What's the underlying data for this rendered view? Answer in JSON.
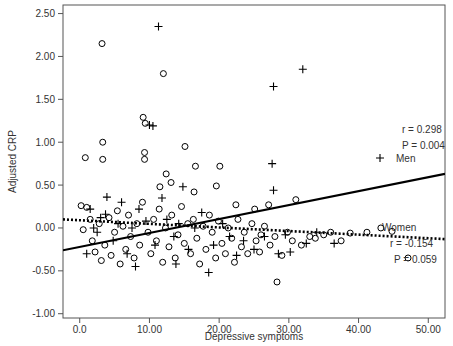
{
  "chart_data": {
    "type": "scatter",
    "x_label": "Depressive symptoms",
    "y_label": "Adjusted CRP",
    "xlim": [
      -2.4,
      52.4
    ],
    "ylim": [
      -1.05,
      2.6
    ],
    "xticks": [
      {
        "value": 0,
        "label": "0.0"
      },
      {
        "value": 10,
        "label": "10.00"
      },
      {
        "value": 20,
        "label": "20.00"
      },
      {
        "value": 30,
        "label": "30.00"
      },
      {
        "value": 40,
        "label": "40.00"
      },
      {
        "value": 50,
        "label": "50.00"
      }
    ],
    "yticks": [
      {
        "value": -1,
        "label": "-1.00"
      },
      {
        "value": -0.5,
        "label": "-0.50"
      },
      {
        "value": 0,
        "label": "0.00"
      },
      {
        "value": 0.5,
        "label": "0.50"
      },
      {
        "value": 1,
        "label": "1.00"
      },
      {
        "value": 1.5,
        "label": "1.50"
      },
      {
        "value": 2,
        "label": "2.00"
      },
      {
        "value": 2.5,
        "label": "2.50"
      }
    ],
    "grid": false,
    "annotations": [
      "r = 0.298",
      "P = 0.004",
      "r = -0.154",
      "P = 0.059"
    ],
    "series": [
      {
        "name": "Women",
        "type": "scatter",
        "marker": "circle",
        "color": "#000000",
        "x": [
          3.2,
          12.0,
          3.3,
          0.8,
          3.3,
          9.1,
          9.4,
          9.3,
          9.3,
          15.1,
          16.6,
          12.4,
          20.1,
          11.5,
          13.1,
          19.6,
          16.4,
          22.4,
          25.1,
          27.1,
          31.0,
          28.3,
          43.2,
          44.8,
          47.1,
          38.8,
          41.2,
          35.0,
          33.0,
          26.0,
          0.2,
          1.0,
          1.5,
          0.5,
          1.8,
          2.2,
          2.8,
          3.1,
          3.6,
          4.2,
          4.5,
          5.0,
          5.4,
          5.8,
          6.2,
          6.6,
          7.0,
          7.3,
          7.8,
          8.2,
          8.6,
          9.0,
          9.8,
          10.2,
          10.6,
          11.0,
          11.4,
          11.9,
          12.3,
          12.8,
          13.2,
          13.7,
          14.1,
          14.6,
          15.0,
          15.5,
          15.9,
          16.3,
          16.8,
          17.2,
          17.7,
          18.1,
          18.6,
          19.0,
          19.5,
          19.9,
          20.4,
          20.9,
          21.3,
          21.8,
          22.2,
          22.7,
          23.2,
          23.6,
          24.1,
          24.7,
          25.3,
          25.8,
          26.5,
          27.3,
          28.0,
          29.0,
          29.8,
          30.5,
          31.8,
          33.8,
          36.0,
          37.5
        ],
        "values": [
          2.15,
          1.8,
          1.0,
          0.82,
          0.8,
          1.29,
          1.22,
          0.88,
          0.8,
          0.95,
          0.72,
          0.63,
          0.72,
          0.48,
          0.53,
          0.49,
          0.42,
          0.27,
          0.22,
          0.27,
          0.33,
          -0.63,
          0.0,
          -0.04,
          -0.35,
          -0.06,
          -0.05,
          -0.08,
          -0.1,
          -0.08,
          0.26,
          0.24,
          0.1,
          -0.02,
          -0.15,
          -0.28,
          0.05,
          -0.38,
          -0.2,
          0.12,
          -0.32,
          -0.05,
          0.2,
          -0.42,
          0.02,
          -0.25,
          0.15,
          -0.1,
          -0.35,
          0.05,
          -0.2,
          0.3,
          -0.05,
          -0.3,
          0.1,
          -0.15,
          0.22,
          -0.4,
          0.0,
          -0.22,
          0.15,
          -0.35,
          -0.08,
          0.25,
          -0.18,
          0.05,
          -0.3,
          0.1,
          -0.12,
          -0.42,
          0.02,
          -0.25,
          0.15,
          -0.05,
          -0.35,
          0.08,
          -0.18,
          -0.3,
          0.0,
          -0.12,
          -0.4,
          0.1,
          -0.22,
          -0.05,
          -0.3,
          0.05,
          -0.15,
          -0.28,
          0.02,
          -0.2,
          -0.1,
          -0.32,
          -0.05,
          -0.15,
          -0.2,
          -0.12,
          -0.05,
          -0.15
        ]
      },
      {
        "name": "Men",
        "type": "scatter",
        "marker": "plus",
        "color": "#000000",
        "x": [
          11.3,
          32.0,
          27.8,
          10.0,
          10.5,
          27.6,
          27.8,
          14.8,
          3.9,
          3.7,
          1.5,
          2.5,
          2.0,
          4.8,
          5.5,
          6.0,
          6.8,
          7.5,
          8.0,
          8.5,
          9.5,
          10.8,
          11.8,
          12.5,
          13.5,
          14.2,
          15.6,
          16.5,
          17.5,
          18.5,
          19.2,
          20.5,
          21.5,
          22.5,
          23.5,
          25.0,
          26.5,
          28.5,
          29.5,
          30.2,
          32.5,
          36.5,
          34.0,
          3.0,
          1.0,
          13.8
        ],
        "values": [
          2.35,
          1.85,
          1.65,
          1.2,
          1.19,
          0.75,
          0.44,
          0.48,
          0.36,
          0.16,
          0.22,
          -0.05,
          0.0,
          -0.15,
          0.05,
          0.3,
          -0.3,
          0.0,
          -0.45,
          0.22,
          0.08,
          -0.2,
          0.35,
          0.1,
          -0.1,
          0.05,
          -0.25,
          0.0,
          0.18,
          -0.52,
          -0.2,
          0.05,
          -0.1,
          -0.32,
          -0.15,
          -0.25,
          -0.1,
          -0.3,
          -0.08,
          -0.28,
          -0.18,
          -0.18,
          -0.05,
          0.12,
          -0.3,
          -0.42
        ]
      },
      {
        "type": "line",
        "line_style": "dotted",
        "color": "#000000",
        "x": [
          -2.4,
          52.4
        ],
        "values": [
          0.1,
          -0.13
        ]
      },
      {
        "type": "line",
        "line_style": "solid",
        "color": "#000000",
        "x": [
          -2.4,
          52.4
        ],
        "values": [
          -0.26,
          0.63
        ]
      }
    ]
  }
}
